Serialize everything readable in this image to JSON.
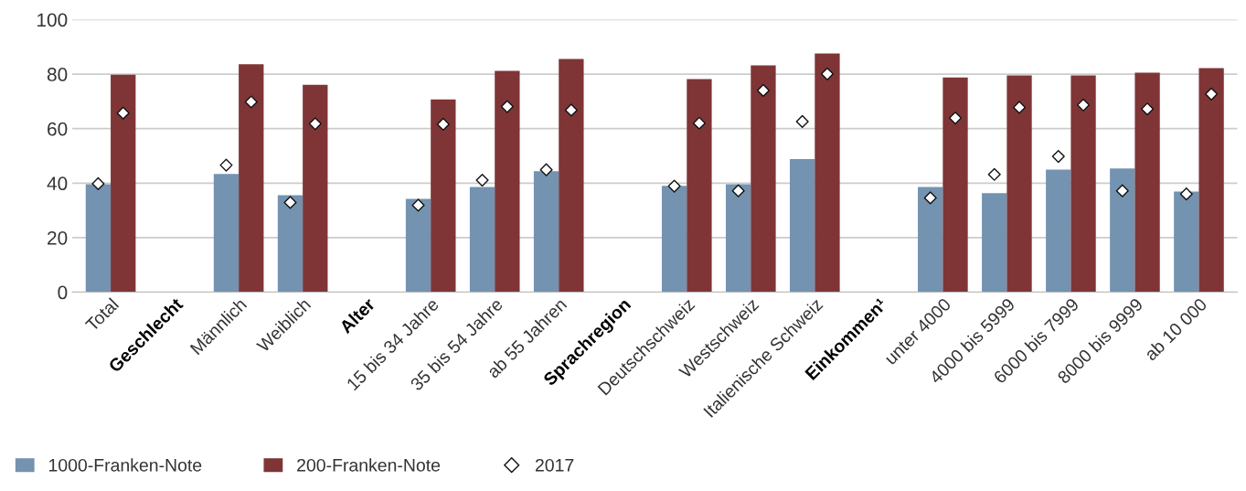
{
  "chart_data": {
    "type": "bar",
    "categories": [
      "Total",
      "Geschlecht",
      "Männlich",
      "Weiblich",
      "Alter",
      "15 bis 34 Jahre",
      "35 bis 54 Jahre",
      "ab 55 Jahren",
      "Sprachregion",
      "Deutschschweiz",
      "Westschweiz",
      "Italienische Schweiz",
      "Einkommen¹",
      "unter 4000",
      "4000 bis 5999",
      "6000 bis 7999",
      "8000 bis 9999",
      "ab 10 000"
    ],
    "series": [
      {
        "name": "1000-Franken-Note",
        "color": "#7393b0",
        "values": [
          39.6,
          null,
          43.4,
          35.6,
          null,
          34.2,
          38.6,
          44.4,
          null,
          39.0,
          39.6,
          48.8,
          null,
          38.6,
          36.3,
          45.0,
          45.4,
          36.9
        ]
      },
      {
        "name": "200-Franken-Note",
        "color": "#7f3536",
        "values": [
          79.8,
          null,
          83.6,
          76.1,
          null,
          70.7,
          81.2,
          85.6,
          null,
          78.2,
          83.2,
          87.6,
          null,
          78.8,
          79.5,
          79.5,
          80.5,
          82.2
        ]
      },
      {
        "name": "2017",
        "type": "scatter",
        "marker": "diamond",
        "color": "#ffffff",
        "values": [
          39.8,
          null,
          46.6,
          32.9,
          null,
          31.9,
          41.1,
          44.9,
          null,
          38.9,
          37.2,
          62.6,
          null,
          34.6,
          43.2,
          49.8,
          37.2,
          36.0
        ]
      },
      {
        "type": "scatter",
        "marker": "diamond",
        "color": "#ffffff",
        "values": [
          65.7,
          null,
          69.8,
          61.8,
          null,
          61.6,
          68.1,
          66.8,
          null,
          62.0,
          74.0,
          80.1,
          null,
          63.9,
          67.8,
          68.7,
          67.2,
          72.7
        ]
      }
    ],
    "ylim": [
      0,
      100
    ],
    "yticks": [
      0,
      20,
      40,
      60,
      80,
      100
    ],
    "grid": "y",
    "legend": "bottom left"
  }
}
